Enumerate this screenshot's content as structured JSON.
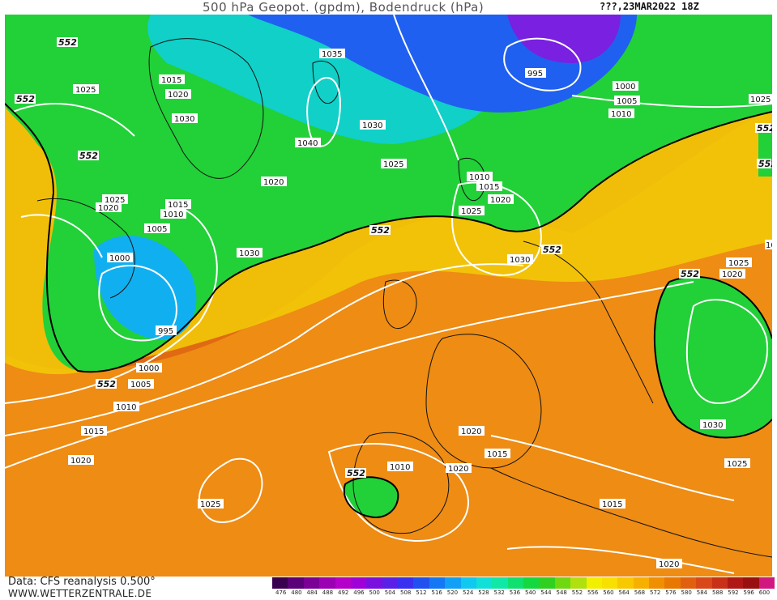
{
  "header": {
    "title": "500 hPa Geopot. (gpdm), Bodendruck (hPa)",
    "date": "???,23MAR2022 18Z"
  },
  "footer": {
    "data_source": "Data: CFS reanalysis 0.500°",
    "website": "WWW.WETTERZENTRALE.DE"
  },
  "map": {
    "geopotential_labels": [
      "552",
      "552",
      "552",
      "552",
      "552",
      "552",
      "552",
      "552",
      "552",
      "552"
    ],
    "pressure_labels": [
      "1035",
      "995",
      "1000",
      "1005",
      "1010",
      "1015",
      "1020",
      "1025",
      "1030",
      "1040",
      "1020",
      "1030",
      "1025",
      "1020",
      "1015",
      "1010",
      "1005",
      "1000",
      "995",
      "1000",
      "1005",
      "1010",
      "1015",
      "1020",
      "1025",
      "1030",
      "1025",
      "1020",
      "1010",
      "1015",
      "1020",
      "1025",
      "1030",
      "1025",
      "1020",
      "1015",
      "1020",
      "1010",
      "1015",
      "1020",
      "1025",
      "1020",
      "1030",
      "1025"
    ],
    "colors": {
      "contour": "#ffffff",
      "coast": "#111111"
    }
  },
  "legend": {
    "values": [
      "476",
      "480",
      "484",
      "488",
      "492",
      "496",
      "500",
      "504",
      "508",
      "512",
      "516",
      "520",
      "524",
      "528",
      "532",
      "536",
      "540",
      "544",
      "548",
      "552",
      "556",
      "560",
      "564",
      "568",
      "572",
      "576",
      "580",
      "584",
      "588",
      "592",
      "596",
      "600"
    ],
    "colors": [
      "#3a0050",
      "#5a0078",
      "#7a0096",
      "#9c00b4",
      "#b400c8",
      "#a000d8",
      "#7a10e0",
      "#5a20e8",
      "#3a30f0",
      "#2050f0",
      "#1478f5",
      "#10a0f5",
      "#10c8f0",
      "#10e0d8",
      "#10e8a8",
      "#10e070",
      "#14d840",
      "#30d020",
      "#70d810",
      "#b0e010",
      "#f0f000",
      "#f8e000",
      "#f8c800",
      "#f8b000",
      "#f09000",
      "#e87800",
      "#e06010",
      "#d84818",
      "#c83018",
      "#b01818",
      "#981010",
      "#d01880"
    ]
  }
}
